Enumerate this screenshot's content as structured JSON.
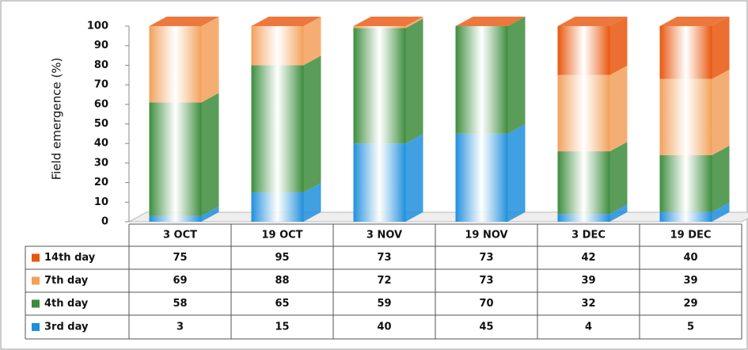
{
  "chart_data": {
    "type": "bar3d_stacked",
    "y_label": "Field emergence (%)",
    "categories": [
      "3 OCT",
      "19 OCT",
      "3 NOV",
      "19 NOV",
      "3 DEC",
      "19 DEC"
    ],
    "series": [
      {
        "name": "3rd day",
        "color": "#1f8fdc",
        "values": [
          3,
          15,
          40,
          45,
          4,
          5
        ]
      },
      {
        "name": "4th day",
        "color": "#3c8c3c",
        "values": [
          58,
          65,
          59,
          70,
          32,
          29
        ]
      },
      {
        "name": "7th day",
        "color": "#f2a05a",
        "values": [
          69,
          88,
          72,
          73,
          39,
          39
        ]
      },
      {
        "name": "14th day",
        "color": "#e8560c",
        "values": [
          75,
          95,
          73,
          73,
          42,
          40
        ]
      }
    ],
    "ylim": [
      0,
      100
    ],
    "yticks": [
      0,
      10,
      20,
      30,
      40,
      50,
      60,
      70,
      80,
      90,
      100
    ]
  }
}
